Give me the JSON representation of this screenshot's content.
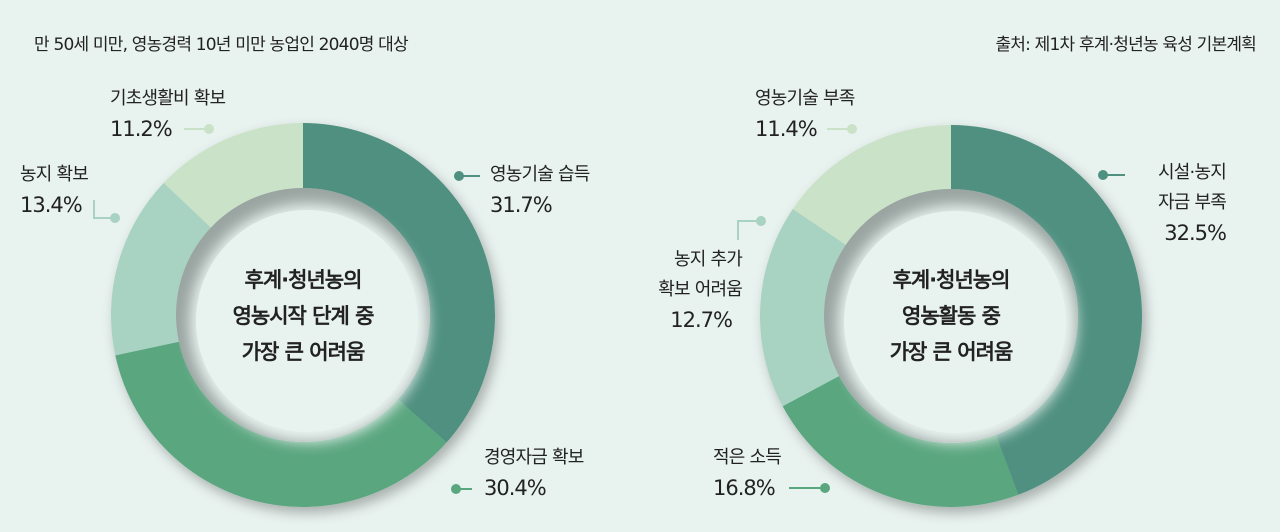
{
  "header": {
    "subtitle": "만 50세 미만, 영농경력 10년 미만 농업인 2040명 대상",
    "source": "출처: 제1차 후계·청년농 육성 기본계획"
  },
  "colors": {
    "dark_teal": "#4f9080",
    "green": "#5aa67f",
    "light_teal": "#a8d2c2",
    "pale_green": "#cae2c8",
    "background": "#e8f2ef"
  },
  "chart_data": [
    {
      "type": "pie",
      "title": "후계·청년농의 영농시작 단계 중 가장 큰 어려움",
      "center_lines": [
        "후계·청년농의",
        "영농시작 단계 중",
        "가장 큰 어려움"
      ],
      "categories": [
        "영농기술 습득",
        "경영자금 확보",
        "농지 확보",
        "기초생활비 확보"
      ],
      "values": [
        31.7,
        30.4,
        13.4,
        11.2
      ],
      "labels": [
        "31.7%",
        "30.4%",
        "13.4%",
        "11.2%"
      ],
      "colors": [
        "#4f9080",
        "#5aa67f",
        "#a8d2c2",
        "#cae2c8"
      ],
      "donut": true
    },
    {
      "type": "pie",
      "title": "후계·청년농의 영농활동 중 가장 큰 어려움",
      "center_lines": [
        "후계·청년농의",
        "영농활동 중",
        "가장 큰 어려움"
      ],
      "categories": [
        "시설·농지 자금 부족",
        "적은 소득",
        "농지 추가 확보 어려움",
        "영농기술 부족"
      ],
      "label_lines": [
        [
          "시설·농지",
          "자금 부족"
        ],
        [
          "적은 소득"
        ],
        [
          "농지 추가",
          "확보 어려움"
        ],
        [
          "영농기술 부족"
        ]
      ],
      "values": [
        32.5,
        16.8,
        12.7,
        11.4
      ],
      "labels": [
        "32.5%",
        "16.8%",
        "12.7%",
        "11.4%"
      ],
      "colors": [
        "#4f9080",
        "#5aa67f",
        "#a8d2c2",
        "#cae2c8"
      ],
      "donut": true
    }
  ]
}
